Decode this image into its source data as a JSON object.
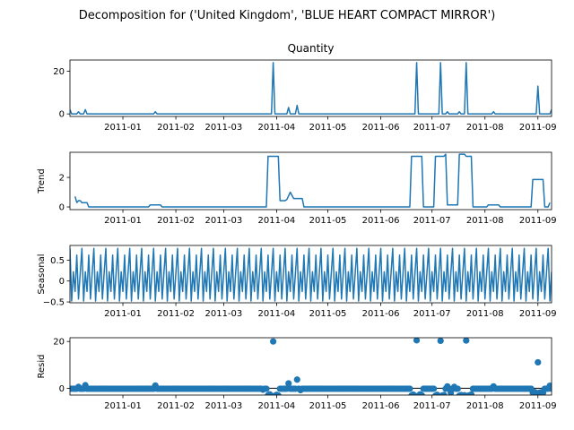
{
  "suptitle": "Decomposition for ('United Kingdom', 'BLUE HEART COMPACT MIRROR')",
  "colors": {
    "series": "#1f77b4",
    "axis": "#000000",
    "zero_line": "#000000"
  },
  "chart_data": [
    {
      "type": "line",
      "title": "Quantity",
      "ylabel": "",
      "xlim": [
        "2010-12-01",
        "2011-09-09"
      ],
      "ylim": [
        -1.2,
        25.2
      ],
      "yticks": [
        0,
        20
      ],
      "xticks": [
        "2011-01",
        "2011-02",
        "2011-03",
        "2011-04",
        "2011-05",
        "2011-06",
        "2011-07",
        "2011-08",
        "2011-09"
      ],
      "series": [
        {
          "values": [
            [
              "2010-12-01",
              2
            ],
            [
              "2010-12-02",
              0
            ],
            [
              "2010-12-05",
              0
            ],
            [
              "2010-12-06",
              1
            ],
            [
              "2010-12-07",
              0
            ],
            [
              "2010-12-09",
              0
            ],
            [
              "2010-12-10",
              2
            ],
            [
              "2010-12-11",
              0
            ],
            [
              "2011-01-19",
              0
            ],
            [
              "2011-01-20",
              1
            ],
            [
              "2011-01-21",
              0
            ],
            [
              "2011-03-29",
              0
            ],
            [
              "2011-03-30",
              24
            ],
            [
              "2011-03-31",
              0
            ],
            [
              "2011-04-07",
              0
            ],
            [
              "2011-04-08",
              3
            ],
            [
              "2011-04-09",
              0
            ],
            [
              "2011-04-12",
              0
            ],
            [
              "2011-04-13",
              4
            ],
            [
              "2011-04-14",
              0
            ],
            [
              "2011-06-21",
              0
            ],
            [
              "2011-06-22",
              24
            ],
            [
              "2011-06-23",
              0
            ],
            [
              "2011-07-05",
              0
            ],
            [
              "2011-07-06",
              24
            ],
            [
              "2011-07-07",
              0
            ],
            [
              "2011-07-09",
              0
            ],
            [
              "2011-07-10",
              1
            ],
            [
              "2011-07-11",
              0
            ],
            [
              "2011-07-16",
              0
            ],
            [
              "2011-07-17",
              1
            ],
            [
              "2011-07-18",
              0
            ],
            [
              "2011-07-20",
              0
            ],
            [
              "2011-07-21",
              24
            ],
            [
              "2011-07-22",
              0
            ],
            [
              "2011-08-05",
              0
            ],
            [
              "2011-08-06",
              1
            ],
            [
              "2011-08-07",
              0
            ],
            [
              "2011-08-31",
              0
            ],
            [
              "2011-09-01",
              13
            ],
            [
              "2011-09-02",
              0
            ],
            [
              "2011-09-08",
              0
            ],
            [
              "2011-09-09",
              2
            ]
          ]
        }
      ]
    },
    {
      "type": "line",
      "title": "",
      "ylabel": "Trend",
      "xlim": [
        "2010-12-01",
        "2011-09-09"
      ],
      "ylim": [
        -0.18,
        3.7
      ],
      "yticks": [
        0,
        2
      ],
      "xticks": [
        "2011-01",
        "2011-02",
        "2011-03",
        "2011-04",
        "2011-05",
        "2011-06",
        "2011-07",
        "2011-08",
        "2011-09"
      ],
      "series": [
        {
          "values": [
            [
              "2010-12-04",
              0.71
            ],
            [
              "2010-12-05",
              0.3
            ],
            [
              "2010-12-06",
              0.43
            ],
            [
              "2010-12-07",
              0.43
            ],
            [
              "2010-12-08",
              0.29
            ],
            [
              "2010-12-11",
              0.29
            ],
            [
              "2010-12-12",
              0.0
            ],
            [
              "2011-01-16",
              0.0
            ],
            [
              "2011-01-17",
              0.14
            ],
            [
              "2011-01-23",
              0.14
            ],
            [
              "2011-01-24",
              0.0
            ],
            [
              "2011-03-26",
              0.0
            ],
            [
              "2011-03-27",
              3.43
            ],
            [
              "2011-04-02",
              3.43
            ],
            [
              "2011-04-03",
              0.43
            ],
            [
              "2011-04-06",
              0.43
            ],
            [
              "2011-04-07",
              0.5
            ],
            [
              "2011-04-09",
              1.0
            ],
            [
              "2011-04-11",
              0.57
            ],
            [
              "2011-04-16",
              0.57
            ],
            [
              "2011-04-17",
              0.0
            ],
            [
              "2011-06-18",
              0.0
            ],
            [
              "2011-06-19",
              3.43
            ],
            [
              "2011-06-25",
              3.43
            ],
            [
              "2011-06-26",
              0.0
            ],
            [
              "2011-07-02",
              0.0
            ],
            [
              "2011-07-03",
              3.43
            ],
            [
              "2011-07-08",
              3.43
            ],
            [
              "2011-07-09",
              3.57
            ],
            [
              "2011-07-10",
              0.14
            ],
            [
              "2011-07-16",
              0.14
            ],
            [
              "2011-07-17",
              3.57
            ],
            [
              "2011-07-20",
              3.57
            ],
            [
              "2011-07-21",
              3.43
            ],
            [
              "2011-07-24",
              3.43
            ],
            [
              "2011-07-25",
              0.0
            ],
            [
              "2011-08-02",
              0.0
            ],
            [
              "2011-08-03",
              0.14
            ],
            [
              "2011-08-09",
              0.14
            ],
            [
              "2011-08-10",
              0.0
            ],
            [
              "2011-08-28",
              0.0
            ],
            [
              "2011-08-29",
              1.86
            ],
            [
              "2011-09-04",
              1.86
            ],
            [
              "2011-09-05",
              0.0
            ],
            [
              "2011-09-07",
              0.0
            ],
            [
              "2011-09-08",
              0.29
            ]
          ]
        }
      ]
    },
    {
      "type": "line",
      "title": "",
      "ylabel": "Seasonal",
      "xlim": [
        "2010-12-01",
        "2011-09-09"
      ],
      "ylim": [
        -0.52,
        0.85
      ],
      "yticks": [
        -0.5,
        0.0,
        0.5
      ],
      "xticks": [
        "2011-01",
        "2011-02",
        "2011-03",
        "2011-04",
        "2011-05",
        "2011-06",
        "2011-07",
        "2011-08",
        "2011-09"
      ],
      "period": 7,
      "series": [
        {
          "start": "2010-12-01",
          "end": "2011-09-09",
          "pattern": [
            0.78,
            -0.48,
            0.22,
            -0.25,
            0.62,
            -0.43,
            0.18
          ]
        }
      ]
    },
    {
      "type": "scatter",
      "title": "",
      "ylabel": "Resid",
      "xlim": [
        "2010-12-01",
        "2011-09-09"
      ],
      "ylim": [
        -2.9,
        21.6
      ],
      "yticks": [
        0,
        20
      ],
      "xticks": [
        "2011-01",
        "2011-02",
        "2011-03",
        "2011-04",
        "2011-05",
        "2011-06",
        "2011-07",
        "2011-08",
        "2011-09"
      ],
      "zero_line": true,
      "series": [
        {
          "start": "2010-12-01",
          "end": "2011-09-09",
          "base": -0.2,
          "points": [
            [
              "2010-12-06",
              0.6
            ],
            [
              "2010-12-10",
              1.3
            ],
            [
              "2011-01-20",
              1.2
            ],
            [
              "2011-03-24",
              -0.6
            ],
            [
              "2011-03-27",
              -3.0
            ],
            [
              "2011-03-28",
              -2.6
            ],
            [
              "2011-03-29",
              -3.4
            ],
            [
              "2011-03-30",
              20.0
            ],
            [
              "2011-03-31",
              -3.2
            ],
            [
              "2011-04-01",
              -2.8
            ],
            [
              "2011-04-02",
              -3.1
            ],
            [
              "2011-04-08",
              2.1
            ],
            [
              "2011-04-13",
              3.7
            ],
            [
              "2011-04-15",
              -0.8
            ],
            [
              "2011-06-19",
              -3.1
            ],
            [
              "2011-06-20",
              -2.7
            ],
            [
              "2011-06-21",
              -3.3
            ],
            [
              "2011-06-22",
              20.5
            ],
            [
              "2011-06-23",
              -3.2
            ],
            [
              "2011-06-24",
              -2.6
            ],
            [
              "2011-06-25",
              -3.0
            ],
            [
              "2011-07-03",
              -3.2
            ],
            [
              "2011-07-04",
              -2.8
            ],
            [
              "2011-07-05",
              -3.3
            ],
            [
              "2011-07-06",
              20.3
            ],
            [
              "2011-07-07",
              -3.1
            ],
            [
              "2011-07-08",
              -2.9
            ],
            [
              "2011-07-10",
              0.8
            ],
            [
              "2011-07-12",
              -1.9
            ],
            [
              "2011-07-14",
              0.6
            ],
            [
              "2011-07-17",
              -3.2
            ],
            [
              "2011-07-18",
              -2.9
            ],
            [
              "2011-07-19",
              -3.3
            ],
            [
              "2011-07-20",
              -3.0
            ],
            [
              "2011-07-21",
              20.4
            ],
            [
              "2011-07-22",
              -3.2
            ],
            [
              "2011-07-23",
              -3.0
            ],
            [
              "2011-07-24",
              -2.7
            ],
            [
              "2011-08-06",
              0.8
            ],
            [
              "2011-08-29",
              -1.8
            ],
            [
              "2011-08-30",
              -1.6
            ],
            [
              "2011-08-31",
              -2.0
            ],
            [
              "2011-09-01",
              11.1
            ],
            [
              "2011-09-02",
              -1.9
            ],
            [
              "2011-09-03",
              -1.7
            ],
            [
              "2011-09-04",
              -1.9
            ],
            [
              "2011-09-08",
              1.1
            ]
          ]
        }
      ]
    }
  ]
}
